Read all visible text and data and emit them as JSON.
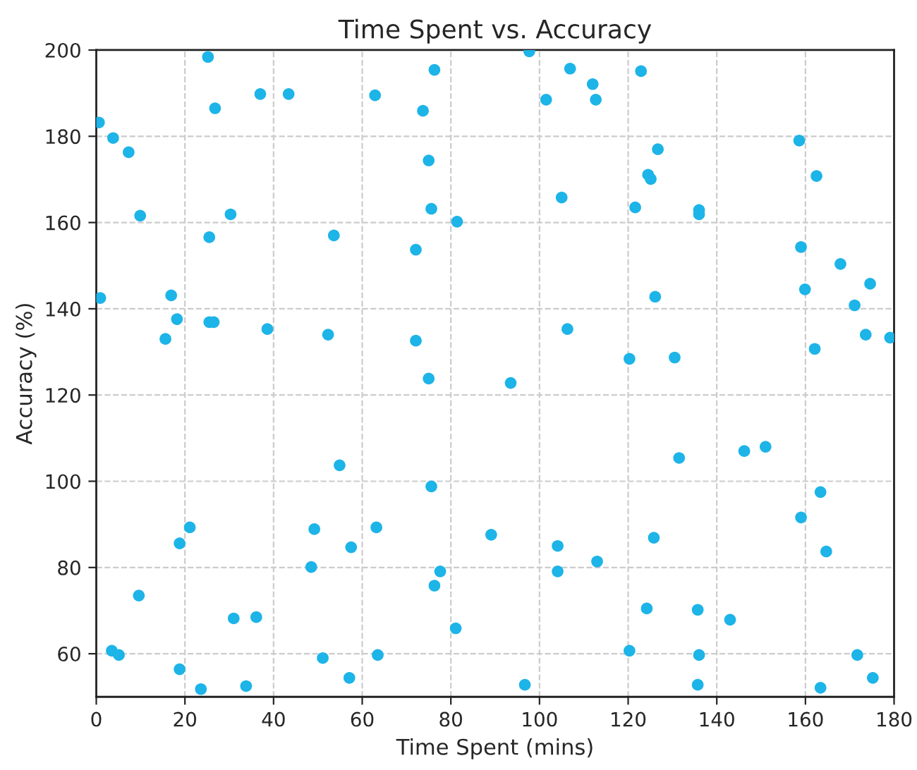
{
  "chart_data": {
    "type": "scatter",
    "title": "Time Spent vs. Accuracy",
    "xlabel": "Time Spent (mins)",
    "ylabel": "Accuracy (%)",
    "xlim": [
      0,
      180
    ],
    "ylim": [
      50,
      200
    ],
    "xticks": [
      0,
      20,
      40,
      60,
      80,
      100,
      120,
      140,
      160,
      180
    ],
    "yticks": [
      60,
      80,
      100,
      120,
      140,
      160,
      180,
      200
    ],
    "grid": true,
    "marker": "circle",
    "series": [
      {
        "color": "#1db4e8",
        "x": [
          0.6,
          3.8,
          7.3,
          9.9,
          25.2,
          26.8,
          37.0,
          43.4,
          62.9,
          73.7,
          75.0,
          76.3,
          75.6,
          81.4,
          30.3,
          25.5,
          53.6,
          72.1,
          0.9,
          16.9,
          18.2,
          25.5,
          26.5,
          15.6,
          38.6,
          52.3,
          72.1,
          97.7,
          106.9,
          122.9,
          112.0,
          101.5,
          112.7,
          158.6,
          126.7,
          124.5,
          125.1,
          162.5,
          105.0,
          121.6,
          136.0,
          136.0,
          159.0,
          167.9,
          159.9,
          174.6,
          126.1,
          171.1,
          106.3,
          173.6,
          179.1,
          162.1,
          75.0,
          54.9,
          75.6,
          21.1,
          18.8,
          49.2,
          63.2,
          89.1,
          57.5,
          48.5,
          77.6,
          76.3,
          9.6,
          31.0,
          36.1,
          81.1,
          3.5,
          5.1,
          18.8,
          51.1,
          63.5,
          57.1,
          23.6,
          33.8,
          96.7,
          93.5,
          120.3,
          130.5,
          131.5,
          146.2,
          151.0,
          163.4,
          159.0,
          164.7,
          104.1,
          125.8,
          104.1,
          113.0,
          124.2,
          135.7,
          143.0,
          120.3,
          136.0,
          171.7,
          175.2,
          135.7,
          163.4
        ],
        "values": [
          183.2,
          179.6,
          176.3,
          161.6,
          198.4,
          186.5,
          189.8,
          189.8,
          189.5,
          185.9,
          174.4,
          195.4,
          163.2,
          160.2,
          161.9,
          156.6,
          157.0,
          153.7,
          142.5,
          143.1,
          137.6,
          136.9,
          136.9,
          133.0,
          135.3,
          134.0,
          132.6,
          199.7,
          195.7,
          195.1,
          192.1,
          188.5,
          188.5,
          179.0,
          177.0,
          171.1,
          170.1,
          170.8,
          165.8,
          163.5,
          162.9,
          161.9,
          154.3,
          150.4,
          144.5,
          145.8,
          142.8,
          140.8,
          135.3,
          134.0,
          133.3,
          130.7,
          123.8,
          103.7,
          98.8,
          89.3,
          85.6,
          88.9,
          89.3,
          87.6,
          84.7,
          80.1,
          79.1,
          75.8,
          73.5,
          68.2,
          68.5,
          65.9,
          60.7,
          59.7,
          56.4,
          59.0,
          59.7,
          54.4,
          51.8,
          52.5,
          52.8,
          122.8,
          128.4,
          128.7,
          105.4,
          107.0,
          108.0,
          97.5,
          91.6,
          83.7,
          85.0,
          86.9,
          79.1,
          81.4,
          70.5,
          70.2,
          67.9,
          60.7,
          59.7,
          59.7,
          54.4,
          52.8,
          52.1
        ]
      }
    ]
  }
}
